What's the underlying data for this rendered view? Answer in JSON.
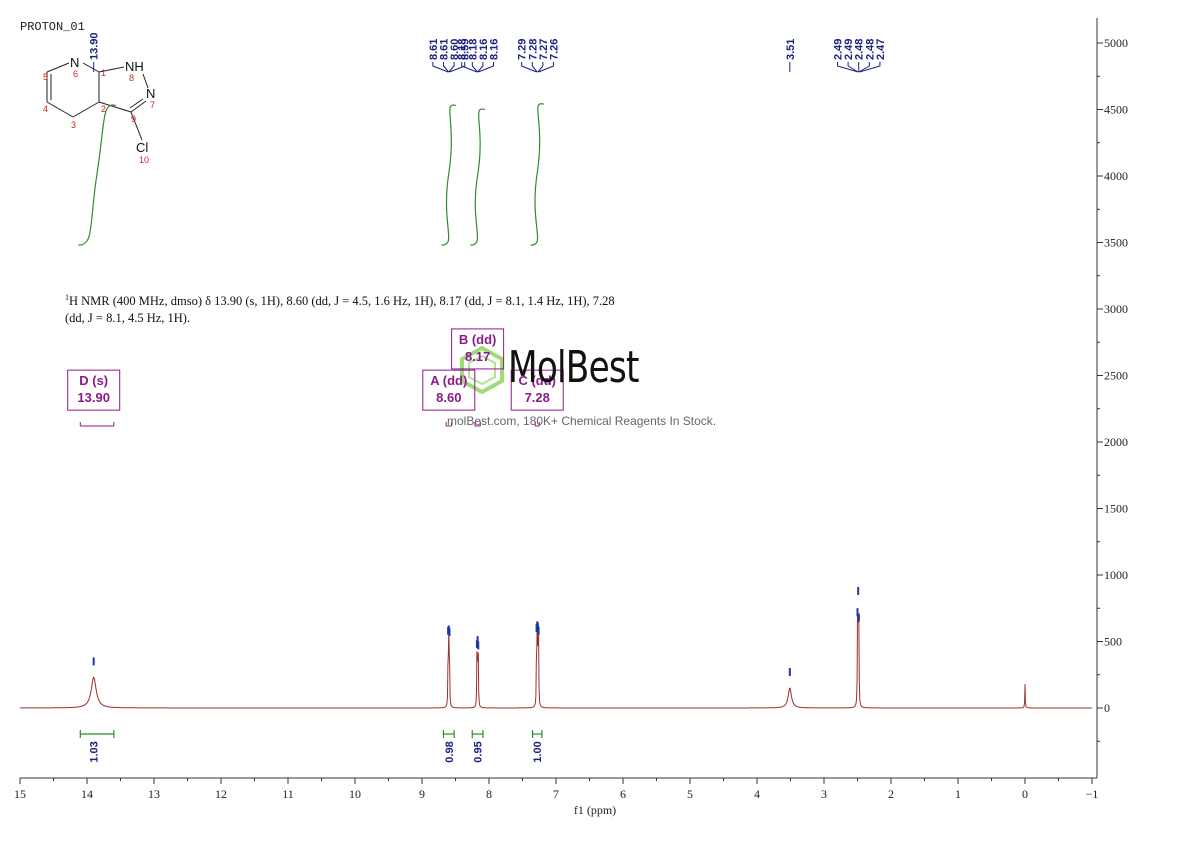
{
  "header": {
    "title": "PROTON_01"
  },
  "summary": {
    "sup": "1",
    "text": "H NMR (400 MHz, dmso) δ 13.90 (s, 1H), 8.60 (dd, J = 4.5, 1.6 Hz, 1H), 8.17 (dd, J = 8.1, 1.4 Hz, 1H), 7.28 (dd, J = 8.1, 4.5 Hz, 1H)."
  },
  "logo": {
    "name": "MolBest",
    "tagline": "molBest.com, 180K+ Chemical Reagents In Stock."
  },
  "molecule": {
    "atoms": [
      "N",
      "NH",
      "N",
      "Cl"
    ],
    "numbers": [
      "1",
      "2",
      "3",
      "4",
      "5",
      "6",
      "7",
      "8",
      "9",
      "10"
    ]
  },
  "colors": {
    "spectrum": "#9c2e2e",
    "integral": "#2e8b2e",
    "peak_label": "#1a237e",
    "multiplet": "#8b1a8b"
  },
  "chart_data": {
    "type": "line",
    "xlabel": "f1 (ppm)",
    "xlim": [
      15,
      -1
    ],
    "ylim": [
      -500,
      5000
    ],
    "x_ticks": [
      15,
      14,
      13,
      12,
      11,
      10,
      9,
      8,
      7,
      6,
      5,
      4,
      3,
      2,
      1,
      0,
      -1
    ],
    "y_ticks": [
      5000,
      4500,
      4000,
      3500,
      3000,
      2500,
      2000,
      1500,
      1000,
      500,
      0
    ],
    "peaks": [
      {
        "ppm": 13.9,
        "height": 230,
        "width": 0.045
      },
      {
        "ppm": 8.61,
        "height": 460,
        "width": 0.004
      },
      {
        "ppm": 8.6,
        "height": 470,
        "width": 0.004
      },
      {
        "ppm": 8.59,
        "height": 450,
        "width": 0.004
      },
      {
        "ppm": 8.18,
        "height": 360,
        "width": 0.004
      },
      {
        "ppm": 8.17,
        "height": 390,
        "width": 0.004
      },
      {
        "ppm": 8.16,
        "height": 350,
        "width": 0.004
      },
      {
        "ppm": 7.29,
        "height": 480,
        "width": 0.004
      },
      {
        "ppm": 7.28,
        "height": 500,
        "width": 0.004
      },
      {
        "ppm": 7.27,
        "height": 490,
        "width": 0.004
      },
      {
        "ppm": 7.26,
        "height": 460,
        "width": 0.004
      },
      {
        "ppm": 3.51,
        "height": 150,
        "width": 0.03
      },
      {
        "ppm": 2.5,
        "height": 600,
        "width": 0.004
      },
      {
        "ppm": 2.49,
        "height": 760,
        "width": 0.004
      },
      {
        "ppm": 2.48,
        "height": 560,
        "width": 0.004
      },
      {
        "ppm": 0.0,
        "height": 180,
        "width": 0.004
      }
    ],
    "peak_labels": [
      "13.90",
      "8.61",
      "8.61",
      "8.60",
      "8.59",
      "8.18",
      "8.18",
      "8.16",
      "8.16",
      "7.29",
      "7.28",
      "7.27",
      "7.26",
      "3.51",
      "2.49",
      "2.49",
      "2.48",
      "2.48",
      "2.47"
    ],
    "peak_label_groups": [
      {
        "labels": [
          "13.90"
        ],
        "targets": [
          13.9
        ]
      },
      {
        "labels": [
          "8.61",
          "8.61",
          "8.60",
          "8.59"
        ],
        "targets": [
          8.61,
          8.6,
          8.6,
          8.59
        ]
      },
      {
        "labels": [
          "8.18",
          "8.18",
          "8.16",
          "8.16"
        ],
        "targets": [
          8.18,
          8.17,
          8.17,
          8.16
        ]
      },
      {
        "labels": [
          "7.29",
          "7.28",
          "7.27",
          "7.26"
        ],
        "targets": [
          7.29,
          7.28,
          7.27,
          7.26
        ]
      },
      {
        "labels": [
          "3.51"
        ],
        "targets": [
          3.51
        ]
      },
      {
        "labels": [
          "2.49",
          "2.49",
          "2.48",
          "2.48",
          "2.47"
        ],
        "targets": [
          2.49,
          2.49,
          2.48,
          2.48,
          2.47
        ]
      }
    ],
    "integrals": [
      {
        "from": 14.1,
        "to": 13.6,
        "value": "1.03",
        "center": 13.9,
        "y_start": 3480,
        "y_end": 4560
      },
      {
        "from": 8.68,
        "to": 8.52,
        "value": "0.98",
        "center": 8.6,
        "y_start": 3480,
        "y_end": 4560
      },
      {
        "from": 8.25,
        "to": 8.09,
        "value": "0.95",
        "center": 8.17,
        "y_start": 3480,
        "y_end": 4530
      },
      {
        "from": 7.35,
        "to": 7.21,
        "value": "1.00",
        "center": 7.28,
        "y_start": 3480,
        "y_end": 4570
      }
    ],
    "multiplets": [
      {
        "letter": "D",
        "type": "s",
        "ppm": "13.90",
        "from": 14.1,
        "to": 13.6,
        "center": 13.9,
        "y_box": 2450
      },
      {
        "letter": "A",
        "type": "dd",
        "ppm": "8.60",
        "from": 8.64,
        "to": 8.56,
        "center": 8.6,
        "y_box": 2450
      },
      {
        "letter": "B",
        "type": "dd",
        "ppm": "8.17",
        "from": 8.21,
        "to": 8.13,
        "center": 8.17,
        "y_box": 2760
      },
      {
        "letter": "C",
        "type": "dd",
        "ppm": "7.28",
        "from": 7.31,
        "to": 7.25,
        "center": 7.28,
        "y_box": 2450
      }
    ]
  }
}
